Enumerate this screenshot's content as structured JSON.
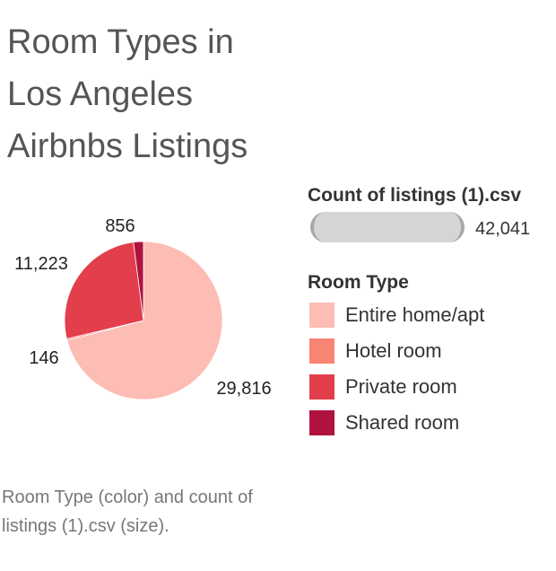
{
  "title_lines": [
    "Room Types in",
    "Los Angeles",
    "Airbnbs Listings"
  ],
  "size_legend": {
    "title": "Count of listings (1).csv",
    "value": "42,041"
  },
  "color_legend": {
    "title": "Room Type",
    "items": [
      {
        "label": "Entire home/apt",
        "color": "#fdbcb4"
      },
      {
        "label": "Hotel room",
        "color": "#f88473"
      },
      {
        "label": "Private room",
        "color": "#e23e4b"
      },
      {
        "label": "Shared room",
        "color": "#b01240"
      }
    ]
  },
  "caption": "Room Type (color) and count of listings (1).csv (size).",
  "chart_data": {
    "type": "pie",
    "categories": [
      "Entire home/apt",
      "Hotel room",
      "Private room",
      "Shared room"
    ],
    "values": [
      29816,
      146,
      11223,
      856
    ],
    "data_labels": [
      "29,816",
      "146",
      "11,223",
      "856"
    ],
    "colors": [
      "#fdbcb4",
      "#f88473",
      "#e23e4b",
      "#b01240"
    ]
  }
}
